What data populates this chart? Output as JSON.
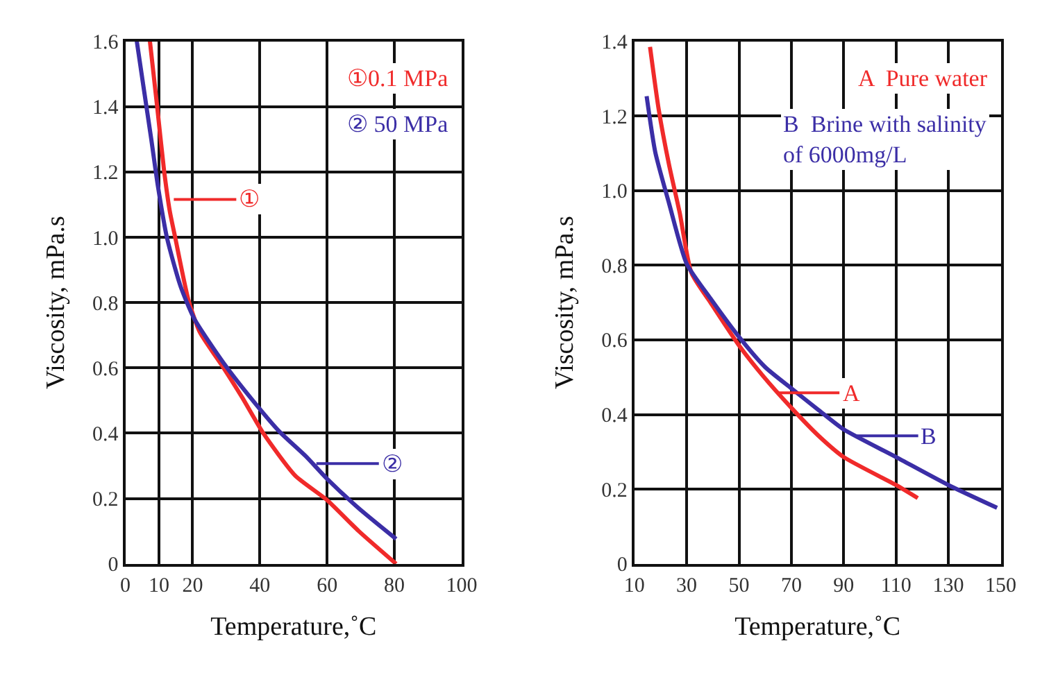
{
  "chart_data": [
    {
      "type": "line",
      "xlabel": "Temperature,˚C",
      "ylabel": "Viscosity, mPa.s",
      "xlim": [
        0,
        100
      ],
      "xticks": [
        0,
        10,
        20,
        40,
        60,
        80,
        100
      ],
      "ylim": [
        0,
        1.6
      ],
      "yticks": [
        0,
        0.2,
        0.4,
        0.6,
        0.8,
        {
          "value": 1,
          "label": "1.0"
        },
        1.2,
        1.4,
        1.6
      ],
      "grid": true,
      "legend": "top right",
      "marker": "none",
      "line_style": "solid",
      "series": [
        {
          "name": "①0.1 MPa",
          "color": "#f02a2a",
          "x": [
            7.3,
            9.4,
            11.5,
            13.2,
            14.8,
            18.7,
            22.1,
            29.2,
            34.7,
            41.0,
            50.5,
            60,
            69.4,
            80.5
          ],
          "values": [
            1.6,
            1.405,
            1.205,
            1.08,
            1.0,
            0.81,
            0.71,
            0.6,
            0.51,
            0.4,
            0.27,
            0.195,
            0.1,
            0.0
          ]
        },
        {
          "name": "② 50 MPa",
          "color": "#3b2ea6",
          "x": [
            3.4,
            5.4,
            7.7,
            9.7,
            12.4,
            16.4,
            20.5,
            29.2,
            37.9,
            45.8,
            53.6,
            60,
            69.4,
            80.5
          ],
          "values": [
            1.6,
            1.46,
            1.3,
            1.155,
            0.997,
            0.85,
            0.75,
            0.615,
            0.5,
            0.405,
            0.33,
            0.26,
            0.17,
            0.076
          ]
        }
      ],
      "annotations": [
        {
          "text": "①",
          "x": 14.4,
          "y": 1.116
        },
        {
          "text": "②",
          "x": 56.8,
          "y": 0.307
        }
      ]
    },
    {
      "type": "line",
      "xlabel": "Temperature,˚C",
      "ylabel": "Viscosity, mPa.s",
      "xlim": [
        10,
        150
      ],
      "xticks": [
        10,
        30,
        50,
        70,
        90,
        110,
        130,
        150
      ],
      "ylim": [
        0,
        1.4
      ],
      "yticks": [
        0,
        0.2,
        0.4,
        0.6,
        0.8,
        {
          "value": 1,
          "label": "1.0"
        },
        1.2,
        1.4
      ],
      "grid": true,
      "legend": "top right",
      "marker": "none",
      "line_style": "solid",
      "series": [
        {
          "name": "A  Pure water",
          "color": "#f02a2a",
          "x": [
            16,
            19.3,
            23.3,
            27.3,
            31.8,
            39.1,
            50,
            59.1,
            70,
            80.4,
            90,
            110,
            118.3
          ],
          "values": [
            1.385,
            1.218,
            1.068,
            0.942,
            0.78,
            0.7,
            0.585,
            0.504,
            0.418,
            0.343,
            0.286,
            0.211,
            0.176
          ]
        },
        {
          "name": "B  Brine with salinity\nof 6000mg/L",
          "color": "#3b2ea6",
          "x": [
            14.7,
            18,
            23.3,
            30,
            39.1,
            50,
            60,
            70,
            80.4,
            90,
            110,
            130,
            148.6
          ],
          "values": [
            1.253,
            1.103,
            0.965,
            0.804,
            0.711,
            0.608,
            0.527,
            0.47,
            0.412,
            0.36,
            0.286,
            0.211,
            0.15
          ]
        }
      ],
      "annotations": [
        {
          "text": "A",
          "x": 64.5,
          "y": 0.458
        },
        {
          "text": "B",
          "x": 94.6,
          "y": 0.343
        }
      ]
    }
  ]
}
